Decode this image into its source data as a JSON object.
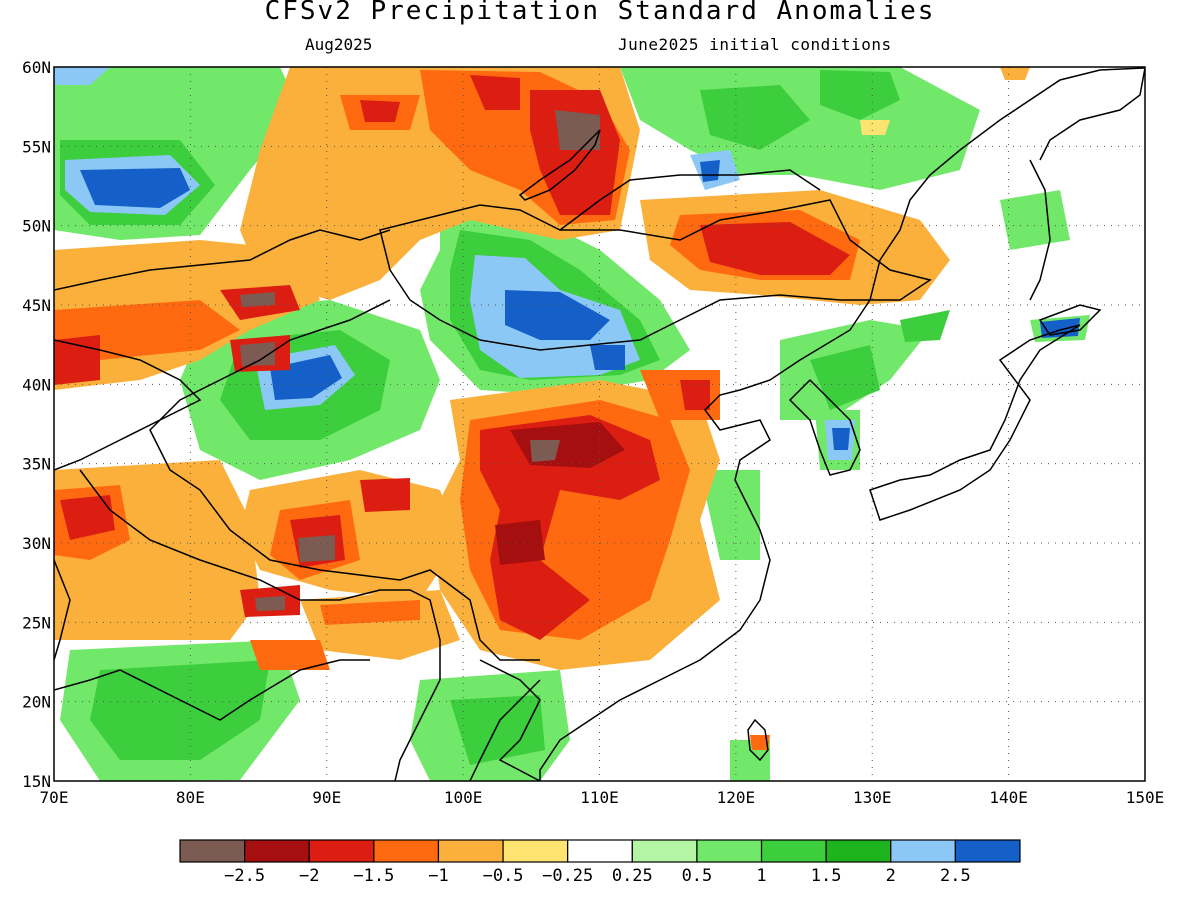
{
  "header": {
    "title": "CFSv2 Precipitation Standard Anomalies",
    "valid_month": "Aug2025",
    "initial_conditions": "June2025 initial conditions"
  },
  "map": {
    "lon_range": [
      70,
      150
    ],
    "lat_range": [
      15,
      60
    ],
    "lon_labels": [
      "70E",
      "80E",
      "90E",
      "100E",
      "110E",
      "120E",
      "130E",
      "140E",
      "150E"
    ],
    "lat_labels": [
      "60N",
      "55N",
      "50N",
      "45N",
      "40N",
      "35N",
      "30N",
      "25N",
      "20N",
      "15N"
    ],
    "gridlines": true
  },
  "colorbar": {
    "colors": [
      "#7c5c52",
      "#a50f0f",
      "#dc1e12",
      "#ff6a10",
      "#fbb03b",
      "#fde370",
      "#ffffff",
      "#b4f5a3",
      "#72e86b",
      "#3cce3c",
      "#1eb41e",
      "#8cc8f5",
      "#1460c8"
    ],
    "labels": [
      "−2.5",
      "−2",
      "−1.5",
      "−1",
      "−0.5",
      "−0.25",
      "0.25",
      "0.5",
      "1",
      "1.5",
      "2",
      "2.5"
    ]
  }
}
